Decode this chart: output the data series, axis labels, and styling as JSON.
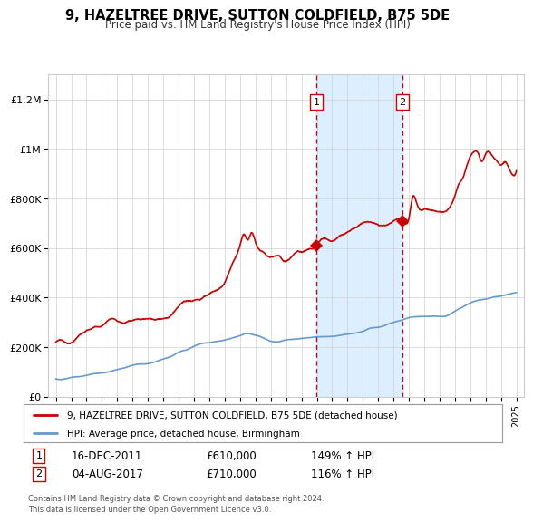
{
  "title": "9, HAZELTREE DRIVE, SUTTON COLDFIELD, B75 5DE",
  "subtitle": "Price paid vs. HM Land Registry's House Price Index (HPI)",
  "sale1_date": "16-DEC-2011",
  "sale1_price": 610000,
  "sale1_label": "1",
  "sale1_x": 2011.96,
  "sale2_date": "04-AUG-2017",
  "sale2_price": 710000,
  "sale2_label": "2",
  "sale2_x": 2017.59,
  "legend1": "9, HAZELTREE DRIVE, SUTTON COLDFIELD, B75 5DE (detached house)",
  "legend2": "HPI: Average price, detached house, Birmingham",
  "footer": "Contains HM Land Registry data © Crown copyright and database right 2024.\nThis data is licensed under the Open Government Licence v3.0.",
  "property_line_color": "#cc0000",
  "hpi_line_color": "#6699cc",
  "shade_color": "#ddeeff",
  "dashed_color": "#cc0000",
  "background_color": "#ffffff",
  "ylim": [
    0,
    1300000
  ],
  "xlim": [
    1994.5,
    2025.5
  ],
  "yticks": [
    0,
    200000,
    400000,
    600000,
    800000,
    1000000,
    1200000
  ],
  "ytick_labels": [
    "£0",
    "£200K",
    "£400K",
    "£600K",
    "£800K",
    "£1M",
    "£1.2M"
  ],
  "xticks": [
    1995,
    1996,
    1997,
    1998,
    1999,
    2000,
    2001,
    2002,
    2003,
    2004,
    2005,
    2006,
    2007,
    2008,
    2009,
    2010,
    2011,
    2012,
    2013,
    2014,
    2015,
    2016,
    2017,
    2018,
    2019,
    2020,
    2021,
    2022,
    2023,
    2024,
    2025
  ]
}
